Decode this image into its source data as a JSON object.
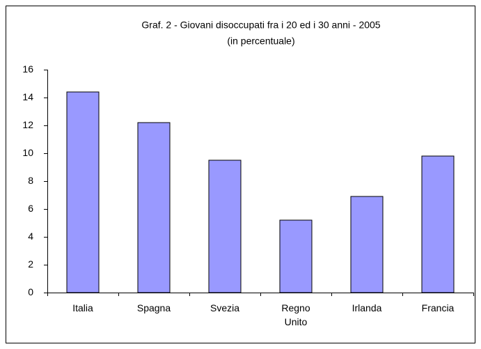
{
  "chart_data": {
    "type": "bar",
    "title": "Graf. 2 - Giovani disoccupati fra i 20 ed i 30 anni - 2005",
    "subtitle": "(in percentuale)",
    "categories": [
      "Italia",
      "Spagna",
      "Svezia",
      "Regno Unito",
      "Irlanda",
      "Francia"
    ],
    "values": [
      14.4,
      12.2,
      9.5,
      5.2,
      6.9,
      9.8
    ],
    "color": "#9999ff",
    "ylim": [
      0,
      16
    ],
    "yticks": [
      0,
      2,
      4,
      6,
      8,
      10,
      12,
      14,
      16
    ],
    "grid": false
  }
}
